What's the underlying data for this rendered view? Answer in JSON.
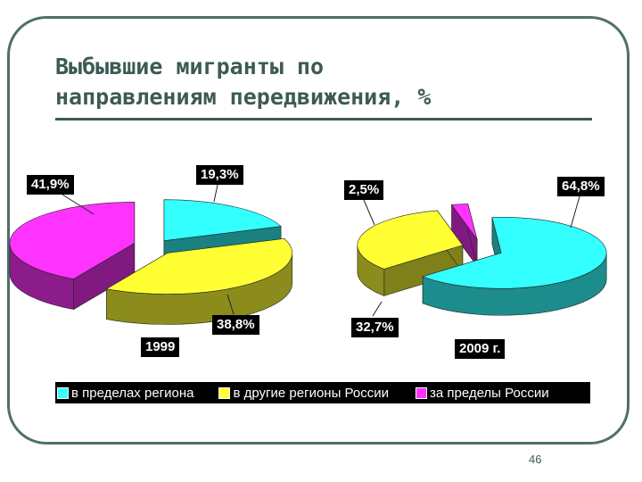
{
  "slide": {
    "title": "Выбывшие мигранты по\nнаправлениям передвижения, %",
    "page_number": "46"
  },
  "chart_data": [
    {
      "type": "pie",
      "title": "1999",
      "categories": [
        "в пределах региона",
        "в другие регионы России",
        "за пределы России"
      ],
      "values": [
        19.3,
        38.8,
        41.9
      ],
      "labels": [
        "19,3%",
        "38,8%",
        "41,9%"
      ],
      "colors": [
        "#33ffff",
        "#ffff33",
        "#ff33ff"
      ],
      "legend": "bottom"
    },
    {
      "type": "pie",
      "title": "2009 г.",
      "categories": [
        "в пределах региона",
        "в другие регионы России",
        "за пределы России"
      ],
      "values": [
        64.8,
        32.7,
        2.5
      ],
      "labels": [
        "64,8%",
        "32,7%",
        "2,5%"
      ],
      "colors": [
        "#33ffff",
        "#ffff33",
        "#ff33ff"
      ],
      "legend": "bottom"
    }
  ],
  "legend": [
    {
      "label": "в пределах региона",
      "color": "#33ffff"
    },
    {
      "label": "в другие регионы России",
      "color": "#ffff33"
    },
    {
      "label": "за пределы России",
      "color": "#ff33ff"
    }
  ]
}
